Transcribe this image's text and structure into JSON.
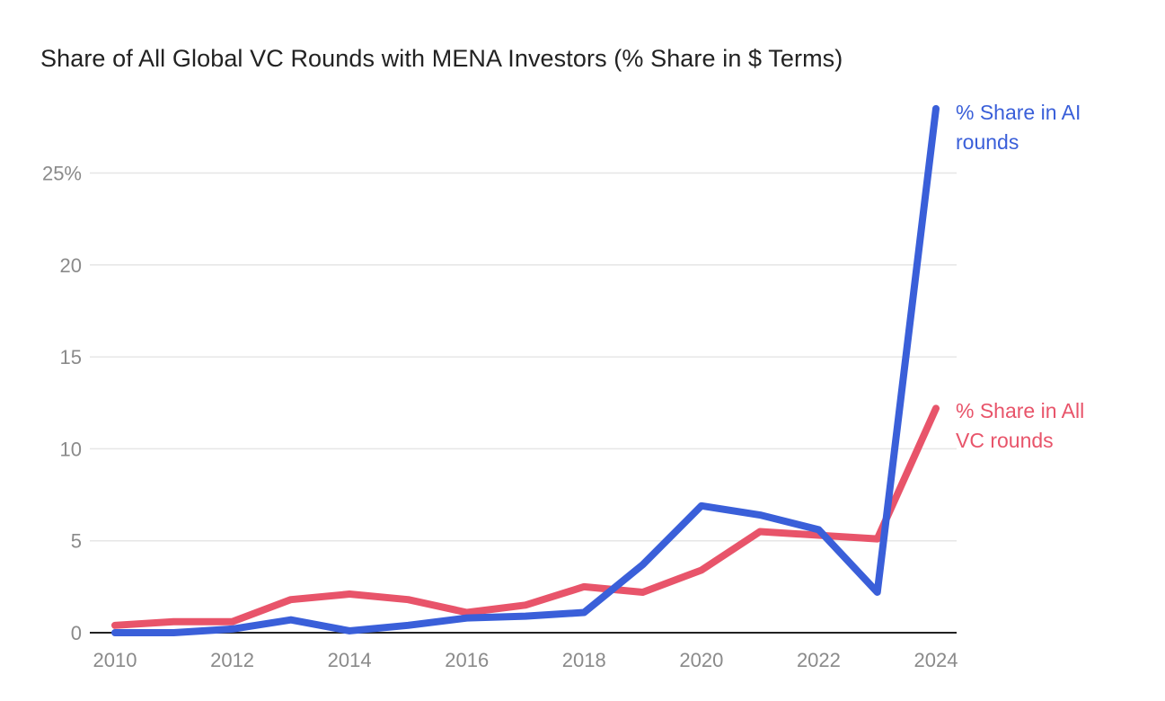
{
  "chart_data": {
    "type": "line",
    "title": "Share of All Global VC Rounds with MENA Investors (% Share in $ Terms)",
    "xlabel": "",
    "ylabel": "",
    "x": [
      2010,
      2011,
      2012,
      2013,
      2014,
      2015,
      2016,
      2017,
      2018,
      2019,
      2020,
      2021,
      2022,
      2023,
      2024
    ],
    "xticks": [
      "2010",
      "2012",
      "2014",
      "2016",
      "2018",
      "2020",
      "2022",
      "2024"
    ],
    "yticks": [
      {
        "value": 0,
        "label": "0"
      },
      {
        "value": 5,
        "label": "5"
      },
      {
        "value": 10,
        "label": "10"
      },
      {
        "value": 15,
        "label": "15"
      },
      {
        "value": 20,
        "label": "20"
      },
      {
        "value": 25,
        "label": "25%"
      }
    ],
    "ylim": [
      0,
      25
    ],
    "grid": true,
    "series": [
      {
        "name": "% Share in AI rounds",
        "label_lines": [
          "% Share in AI",
          "rounds"
        ],
        "color": "#3a5fd9",
        "values": [
          0.0,
          0.0,
          0.2,
          0.7,
          0.1,
          0.4,
          0.8,
          0.9,
          1.1,
          3.7,
          6.9,
          6.4,
          5.6,
          2.2,
          28.5
        ]
      },
      {
        "name": "% Share in All VC rounds",
        "label_lines": [
          "% Share in All",
          "VC rounds"
        ],
        "color": "#e8546a",
        "values": [
          0.4,
          0.6,
          0.6,
          1.8,
          2.1,
          1.8,
          1.1,
          1.5,
          2.5,
          2.2,
          3.4,
          5.5,
          5.3,
          5.1,
          12.2
        ]
      }
    ]
  }
}
